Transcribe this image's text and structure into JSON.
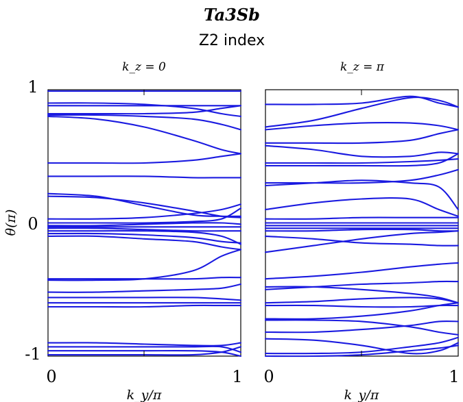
{
  "chart_data": {
    "type": "line",
    "title": "Ta3Sb",
    "subtitle": "Z2 index",
    "ylabel": "θ(π)",
    "y_tick_labels": [
      "1",
      "0",
      "-1"
    ],
    "y_ticks": [
      1,
      0,
      -1
    ],
    "line_color": "#1a1ae0",
    "panels": [
      {
        "title": "k_z = 0",
        "xlabel": "k_y/π",
        "x_tick_labels": [
          "0",
          "1"
        ],
        "xlim": [
          0,
          1
        ],
        "ylim": [
          -1,
          1
        ],
        "x": [
          0,
          0.25,
          0.5,
          0.75,
          0.9,
          1
        ],
        "series": [
          {
            "values": [
              0.99,
              0.99,
              0.99,
              0.99,
              0.99,
              0.99
            ]
          },
          {
            "values": [
              0.9,
              0.9,
              0.89,
              0.86,
              0.82,
              0.8
            ]
          },
          {
            "values": [
              0.88,
              0.88,
              0.88,
              0.88,
              0.88,
              0.88
            ]
          },
          {
            "values": [
              0.82,
              0.82,
              0.82,
              0.83,
              0.86,
              0.88
            ]
          },
          {
            "values": [
              0.81,
              0.81,
              0.8,
              0.78,
              0.74,
              0.7
            ]
          },
          {
            "values": [
              0.45,
              0.45,
              0.45,
              0.47,
              0.5,
              0.52
            ]
          },
          {
            "values": [
              0.8,
              0.78,
              0.72,
              0.62,
              0.55,
              0.52
            ]
          },
          {
            "values": [
              0.35,
              0.35,
              0.35,
              0.34,
              0.34,
              0.34
            ]
          },
          {
            "values": [
              0.2,
              0.19,
              0.15,
              0.09,
              0.05,
              0.04
            ]
          },
          {
            "values": [
              0.22,
              0.2,
              0.13,
              0.06,
              0.05,
              0.05
            ]
          },
          {
            "values": [
              0.03,
              0.03,
              0.04,
              0.07,
              0.1,
              0.14
            ]
          },
          {
            "values": [
              0.0,
              0.0,
              0.0,
              0.01,
              0.03,
              0.11
            ]
          },
          {
            "values": [
              -0.02,
              -0.02,
              -0.01,
              0.0,
              0.0,
              -0.01
            ]
          },
          {
            "values": [
              -0.03,
              -0.03,
              -0.03,
              -0.03,
              -0.03,
              -0.03
            ]
          },
          {
            "values": [
              -0.04,
              -0.04,
              -0.05,
              -0.06,
              -0.06,
              -0.06
            ]
          },
          {
            "values": [
              -0.06,
              -0.06,
              -0.06,
              -0.07,
              -0.1,
              -0.16
            ]
          },
          {
            "values": [
              -0.08,
              -0.08,
              -0.09,
              -0.11,
              -0.14,
              -0.15
            ]
          },
          {
            "values": [
              -0.1,
              -0.1,
              -0.12,
              -0.14,
              -0.18,
              -0.2
            ]
          },
          {
            "values": [
              -0.43,
              -0.43,
              -0.42,
              -0.36,
              -0.25,
              -0.2
            ]
          },
          {
            "values": [
              -0.42,
              -0.42,
              -0.42,
              -0.42,
              -0.41,
              -0.41
            ]
          },
          {
            "values": [
              -0.52,
              -0.52,
              -0.51,
              -0.5,
              -0.49,
              -0.46
            ]
          },
          {
            "values": [
              -0.56,
              -0.56,
              -0.56,
              -0.56,
              -0.57,
              -0.58
            ]
          },
          {
            "values": [
              -0.6,
              -0.6,
              -0.6,
              -0.6,
              -0.6,
              -0.6
            ]
          },
          {
            "values": [
              -0.63,
              -0.63,
              -0.63,
              -0.62,
              -0.62,
              -0.62
            ]
          },
          {
            "values": [
              -0.9,
              -0.9,
              -0.91,
              -0.92,
              -0.92,
              -0.9
            ]
          },
          {
            "values": [
              -0.93,
              -0.93,
              -0.93,
              -0.93,
              -0.93,
              -0.97
            ]
          },
          {
            "values": [
              -0.96,
              -0.96,
              -0.96,
              -0.96,
              -0.97,
              -1.0
            ]
          },
          {
            "values": [
              -0.99,
              -0.99,
              -0.99,
              -0.99,
              -0.97,
              -0.93
            ]
          }
        ]
      },
      {
        "title": "k_z = π",
        "xlabel": "k_y/π",
        "x_tick_labels": [
          "0",
          "1"
        ],
        "xlim": [
          0,
          1
        ],
        "ylim": [
          -1,
          1
        ],
        "x": [
          0,
          0.25,
          0.5,
          0.75,
          0.9,
          1
        ],
        "series": [
          {
            "values": [
              0.89,
              0.89,
              0.9,
              0.95,
              0.9,
              0.87
            ]
          },
          {
            "values": [
              0.72,
              0.77,
              0.86,
              0.94,
              0.92,
              0.87
            ]
          },
          {
            "values": [
              0.7,
              0.73,
              0.75,
              0.75,
              0.73,
              0.7
            ]
          },
          {
            "values": [
              0.6,
              0.6,
              0.6,
              0.62,
              0.67,
              0.7
            ]
          },
          {
            "values": [
              0.58,
              0.55,
              0.5,
              0.5,
              0.53,
              0.52
            ]
          },
          {
            "values": [
              0.45,
              0.45,
              0.45,
              0.46,
              0.47,
              0.48
            ]
          },
          {
            "values": [
              0.43,
              0.43,
              0.43,
              0.43,
              0.45,
              0.52
            ]
          },
          {
            "values": [
              0.3,
              0.3,
              0.3,
              0.32,
              0.36,
              0.4
            ]
          },
          {
            "values": [
              0.1,
              0.15,
              0.18,
              0.18,
              0.1,
              0.05
            ]
          },
          {
            "values": [
              0.28,
              0.3,
              0.32,
              0.3,
              0.27,
              0.1
            ]
          },
          {
            "values": [
              0.03,
              0.03,
              0.04,
              0.04,
              0.04,
              0.04
            ]
          },
          {
            "values": [
              0.0,
              0.0,
              0.0,
              0.0,
              0.0,
              0.0
            ]
          },
          {
            "values": [
              -0.02,
              -0.02,
              -0.02,
              -0.02,
              -0.02,
              -0.02
            ]
          },
          {
            "values": [
              -0.04,
              -0.04,
              -0.04,
              -0.04,
              -0.04,
              -0.04
            ]
          },
          {
            "values": [
              -0.06,
              -0.06,
              -0.05,
              -0.05,
              -0.06,
              -0.06
            ]
          },
          {
            "values": [
              -0.22,
              -0.17,
              -0.12,
              -0.08,
              -0.07,
              -0.06
            ]
          },
          {
            "values": [
              -0.1,
              -0.12,
              -0.15,
              -0.16,
              -0.17,
              -0.17
            ]
          },
          {
            "values": [
              -0.42,
              -0.4,
              -0.37,
              -0.33,
              -0.31,
              -0.3
            ]
          },
          {
            "values": [
              -0.5,
              -0.48,
              -0.46,
              -0.45,
              -0.44,
              -0.44
            ]
          },
          {
            "values": [
              -0.48,
              -0.48,
              -0.5,
              -0.53,
              -0.56,
              -0.6
            ]
          },
          {
            "values": [
              -0.6,
              -0.59,
              -0.57,
              -0.56,
              -0.57,
              -0.6
            ]
          },
          {
            "values": [
              -0.62,
              -0.62,
              -0.63,
              -0.63,
              -0.62,
              -0.62
            ]
          },
          {
            "values": [
              -0.72,
              -0.72,
              -0.7,
              -0.66,
              -0.62,
              -0.6
            ]
          },
          {
            "values": [
              -0.73,
              -0.73,
              -0.74,
              -0.78,
              -0.82,
              -0.84
            ]
          },
          {
            "values": [
              -0.82,
              -0.82,
              -0.8,
              -0.77,
              -0.74,
              -0.74
            ]
          },
          {
            "values": [
              -0.87,
              -0.88,
              -0.92,
              -0.98,
              -0.96,
              -0.9
            ]
          },
          {
            "values": [
              -0.98,
              -0.98,
              -0.97,
              -0.93,
              -0.9,
              -0.86
            ]
          },
          {
            "values": [
              -1.0,
              -1.0,
              -0.99,
              -0.96,
              -0.94,
              -0.92
            ]
          }
        ]
      }
    ]
  }
}
